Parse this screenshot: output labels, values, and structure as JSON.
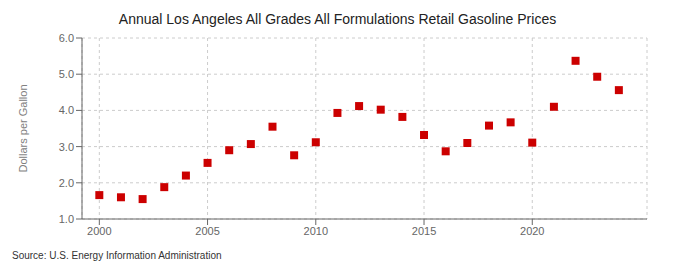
{
  "chart_data": {
    "type": "scatter",
    "title": "Annual Los Angeles All Grades All Formulations Retail Gasoline Prices",
    "ylabel": "Dollars per Gallon",
    "annotations": [
      "Source: U.S. Energy Information Administration"
    ],
    "x": [
      2000,
      2001,
      2002,
      2003,
      2004,
      2005,
      2006,
      2007,
      2008,
      2009,
      2010,
      2011,
      2012,
      2013,
      2014,
      2015,
      2016,
      2017,
      2018,
      2019,
      2020,
      2021,
      2022,
      2023,
      2024
    ],
    "values": [
      1.66,
      1.6,
      1.55,
      1.88,
      2.2,
      2.55,
      2.9,
      3.07,
      3.55,
      2.76,
      3.12,
      3.93,
      4.12,
      4.02,
      3.82,
      3.32,
      2.87,
      3.1,
      3.58,
      3.67,
      3.11,
      4.1,
      5.37,
      4.93,
      4.56
    ],
    "color": "#cc0000",
    "marker": "square",
    "xlim": [
      1999.2,
      2025.3
    ],
    "ylim": [
      1.0,
      6.0
    ],
    "xticks": [
      2000,
      2005,
      2010,
      2015,
      2020
    ],
    "yticks": [
      {
        "value": 1.0,
        "label": "1.0"
      },
      {
        "value": 2.0,
        "label": "2.0"
      },
      {
        "value": 3.0,
        "label": "3.0"
      },
      {
        "value": 4.0,
        "label": "4.0"
      },
      {
        "value": 5.0,
        "label": "5.0"
      },
      {
        "value": 6.0,
        "label": "6.0"
      }
    ],
    "grid": true
  }
}
